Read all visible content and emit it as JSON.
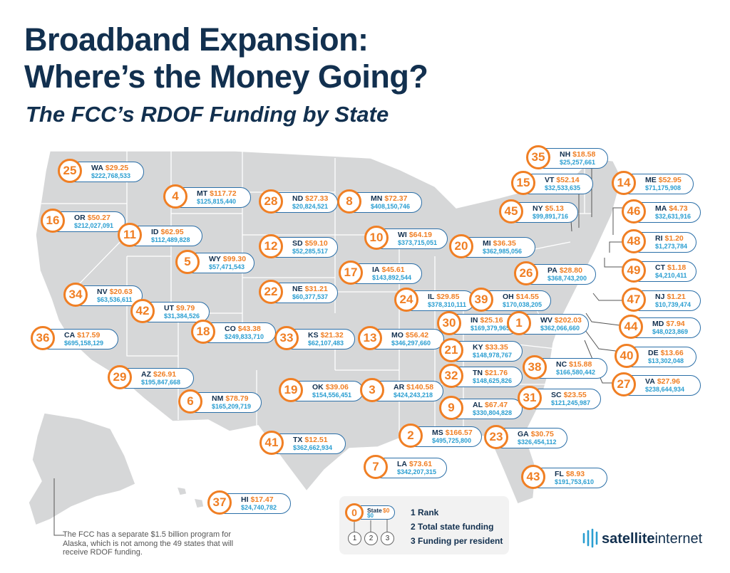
{
  "title_line1": "Broadband Expansion:",
  "title_line2": "Where’s the Money Going?",
  "subtitle": "The FCC’s RDOF Funding by State",
  "colors": {
    "title": "#12304f",
    "accent_orange": "#f07f24",
    "accent_blue": "#2a9ed1",
    "map_fill": "#d6d7d8"
  },
  "states": [
    {
      "rank": "25",
      "abbr": "WA",
      "per": "$29.25",
      "total": "$222,768,533"
    },
    {
      "rank": "4",
      "abbr": "MT",
      "per": "$117.72",
      "total": "$125,815,440"
    },
    {
      "rank": "28",
      "abbr": "ND",
      "per": "$27.33",
      "total": "$20,824,521"
    },
    {
      "rank": "8",
      "abbr": "MN",
      "per": "$72.37",
      "total": "$408,150,746"
    },
    {
      "rank": "16",
      "abbr": "OR",
      "per": "$50.27",
      "total": "$212,027,091"
    },
    {
      "rank": "11",
      "abbr": "ID",
      "per": "$62.95",
      "total": "$112,489,828"
    },
    {
      "rank": "12",
      "abbr": "SD",
      "per": "$59.10",
      "total": "$52,285,517"
    },
    {
      "rank": "10",
      "abbr": "WI",
      "per": "$64.19",
      "total": "$373,715,051"
    },
    {
      "rank": "5",
      "abbr": "WY",
      "per": "$99.30",
      "total": "$57,471,543"
    },
    {
      "rank": "17",
      "abbr": "IA",
      "per": "$45.61",
      "total": "$143,892,544"
    },
    {
      "rank": "20",
      "abbr": "MI",
      "per": "$36.35",
      "total": "$362,985,056"
    },
    {
      "rank": "34",
      "abbr": "NV",
      "per": "$20.63",
      "total": "$63,536,611"
    },
    {
      "rank": "22",
      "abbr": "NE",
      "per": "$31.21",
      "total": "$60,377,537"
    },
    {
      "rank": "42",
      "abbr": "UT",
      "per": "$9.79",
      "total": "$31,384,526"
    },
    {
      "rank": "24",
      "abbr": "IL",
      "per": "$29.85",
      "total": "$378,310,111"
    },
    {
      "rank": "39",
      "abbr": "OH",
      "per": "$14.55",
      "total": "$170,038,205"
    },
    {
      "rank": "18",
      "abbr": "CO",
      "per": "$43.38",
      "total": "$249,833,710"
    },
    {
      "rank": "30",
      "abbr": "IN",
      "per": "$25.16",
      "total": "$169,379,965"
    },
    {
      "rank": "1",
      "abbr": "WV",
      "per": "$202.03",
      "total": "$362,066,660"
    },
    {
      "rank": "36",
      "abbr": "CA",
      "per": "$17.59",
      "total": "$695,158,129"
    },
    {
      "rank": "33",
      "abbr": "KS",
      "per": "$21.32",
      "total": "$62,107,483"
    },
    {
      "rank": "13",
      "abbr": "MO",
      "per": "$56.42",
      "total": "$346,297,660"
    },
    {
      "rank": "21",
      "abbr": "KY",
      "per": "$33.35",
      "total": "$148,978,767"
    },
    {
      "rank": "29",
      "abbr": "AZ",
      "per": "$26.91",
      "total": "$195,847,668"
    },
    {
      "rank": "32",
      "abbr": "TN",
      "per": "$21.76",
      "total": "$148,625,826"
    },
    {
      "rank": "38",
      "abbr": "NC",
      "per": "$15.88",
      "total": "$166,580,442"
    },
    {
      "rank": "19",
      "abbr": "OK",
      "per": "$39.06",
      "total": "$154,556,451"
    },
    {
      "rank": "3",
      "abbr": "AR",
      "per": "$140.58",
      "total": "$424,243,218"
    },
    {
      "rank": "6",
      "abbr": "NM",
      "per": "$78.79",
      "total": "$165,209,719"
    },
    {
      "rank": "9",
      "abbr": "AL",
      "per": "$67.47",
      "total": "$330,804,828"
    },
    {
      "rank": "31",
      "abbr": "SC",
      "per": "$23.55",
      "total": "$121,245,987"
    },
    {
      "rank": "2",
      "abbr": "MS",
      "per": "$166.57",
      "total": "$495,725,800"
    },
    {
      "rank": "23",
      "abbr": "GA",
      "per": "$30.75",
      "total": "$326,454,112"
    },
    {
      "rank": "41",
      "abbr": "TX",
      "per": "$12.51",
      "total": "$362,662,934"
    },
    {
      "rank": "7",
      "abbr": "LA",
      "per": "$73.61",
      "total": "$342,207,315"
    },
    {
      "rank": "43",
      "abbr": "FL",
      "per": "$8.93",
      "total": "$191,753,610"
    },
    {
      "rank": "37",
      "abbr": "HI",
      "per": "$17.47",
      "total": "$24,740,782"
    },
    {
      "rank": "35",
      "abbr": "NH",
      "per": "$18.58",
      "total": "$25,257,661"
    },
    {
      "rank": "15",
      "abbr": "VT",
      "per": "$52.14",
      "total": "$32,533,635"
    },
    {
      "rank": "14",
      "abbr": "ME",
      "per": "$52.95",
      "total": "$71,175,908"
    },
    {
      "rank": "45",
      "abbr": "NY",
      "per": "$5.13",
      "total": "$99,891,716"
    },
    {
      "rank": "46",
      "abbr": "MA",
      "per": "$4.73",
      "total": "$32,631,916"
    },
    {
      "rank": "48",
      "abbr": "RI",
      "per": "$1.20",
      "total": "$1,273,784"
    },
    {
      "rank": "26",
      "abbr": "PA",
      "per": "$28.80",
      "total": "$368,743,200"
    },
    {
      "rank": "49",
      "abbr": "CT",
      "per": "$1.18",
      "total": "$4,210,411"
    },
    {
      "rank": "47",
      "abbr": "NJ",
      "per": "$1.21",
      "total": "$10,739,474"
    },
    {
      "rank": "44",
      "abbr": "MD",
      "per": "$7.94",
      "total": "$48,023,869"
    },
    {
      "rank": "40",
      "abbr": "DE",
      "per": "$13.66",
      "total": "$13,302,048"
    },
    {
      "rank": "27",
      "abbr": "VA",
      "per": "$27.96",
      "total": "$238,644,934"
    }
  ],
  "legend": {
    "rank_sample": "0",
    "state_sample": "State",
    "per_sample": "$0",
    "fund_sample": "$0",
    "num1": "1",
    "num2": "2",
    "num3": "3",
    "item1": "1  Rank",
    "item2": "2  Total state funding",
    "item3": "3  Funding per resident"
  },
  "alaska_note": "The FCC has a separate $1.5 billion program for Alaska, which is not among the 49 states that will receive RDOF funding.",
  "brand": {
    "part1": "satellite",
    "part2": "internet"
  }
}
